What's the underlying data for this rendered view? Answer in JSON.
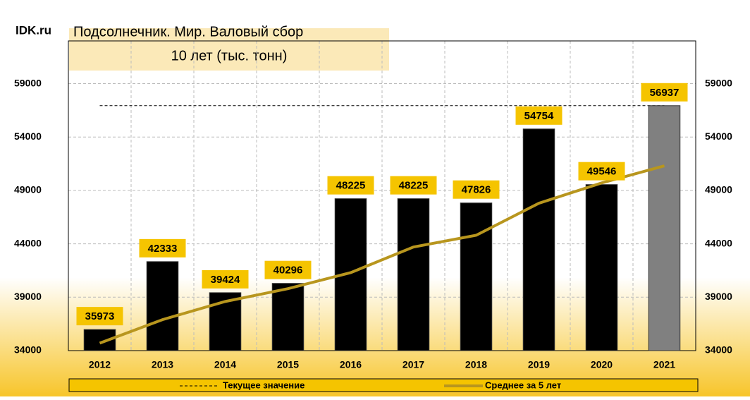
{
  "chart_data": {
    "type": "bar",
    "brand": "IDK.ru",
    "title": "Подсолнечник. Мир. Валовый сбор",
    "subtitle": "10 лет (тыс. тонн)",
    "categories": [
      "2012",
      "2013",
      "2014",
      "2015",
      "2016",
      "2017",
      "2018",
      "2019",
      "2020",
      "2021"
    ],
    "values": [
      35973,
      42333,
      39424,
      40296,
      48225,
      48225,
      47826,
      54754,
      49546,
      56937
    ],
    "colors": [
      "#000000",
      "#000000",
      "#000000",
      "#000000",
      "#000000",
      "#000000",
      "#000000",
      "#000000",
      "#000000",
      "#808080"
    ],
    "line": {
      "name": "Среднее за 5 лет",
      "color": "#b8961e",
      "values": [
        34700,
        36900,
        38600,
        39800,
        41300,
        43700,
        44800,
        47800,
        49700,
        51300
      ]
    },
    "reference_line": {
      "name": "Текущее значение",
      "color": "#000000"
    },
    "label_color": "#f5c400",
    "ylim": [
      34000,
      63000
    ],
    "yticks": [
      34000,
      39000,
      44000,
      49000,
      54000,
      59000
    ],
    "grid": true
  }
}
